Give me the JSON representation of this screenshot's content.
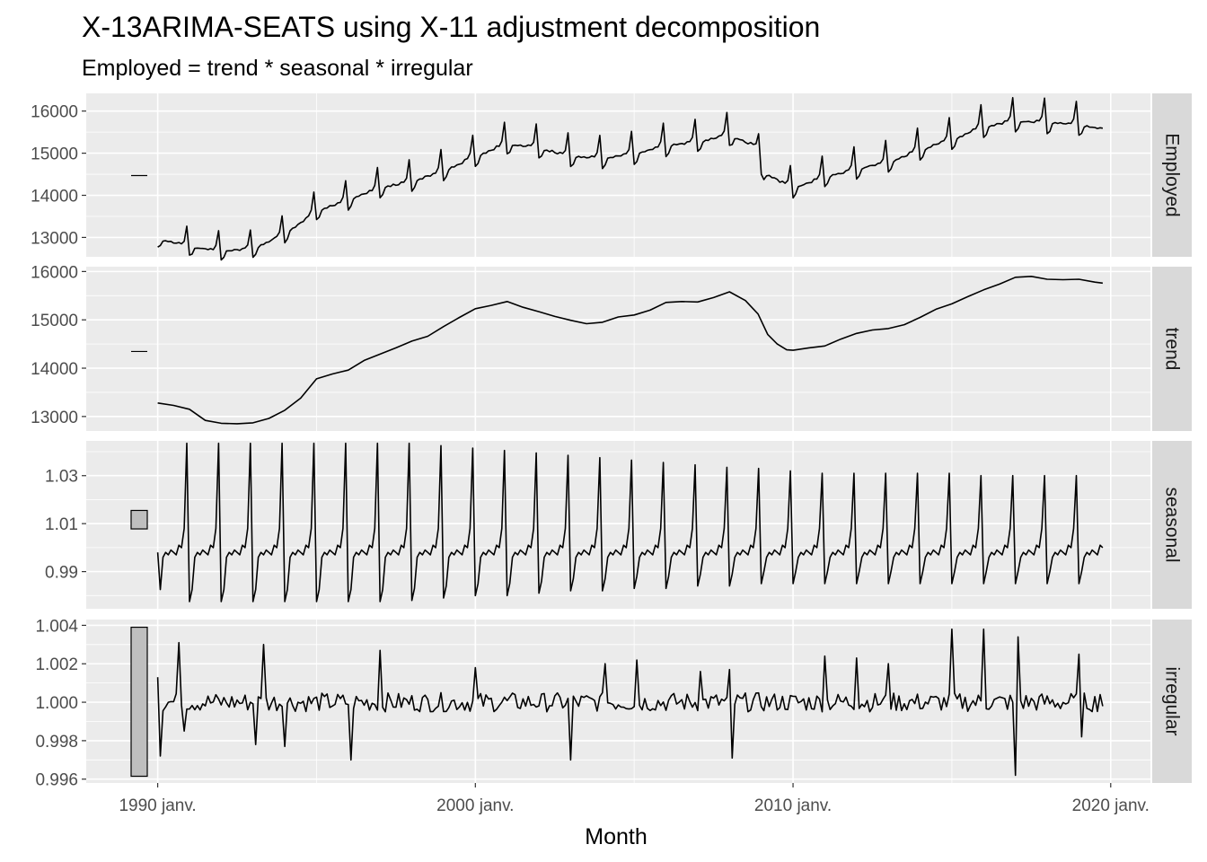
{
  "chart_data": {
    "type": "line",
    "title": "X-13ARIMA-SEATS using X-11 adjustment decomposition",
    "subtitle": "Employed = trend * seasonal * irregular",
    "xlabel": "Month",
    "x_ticks": [
      "1990 janv.",
      "2000 janv.",
      "2010 janv.",
      "2020 janv."
    ],
    "x_range": [
      1987.75,
      2021.25
    ],
    "grid": true,
    "series": [
      {
        "name": "Employed",
        "ylim": [
          12540,
          16420
        ],
        "y_ticks": [
          "13000",
          "14000",
          "15000",
          "16000"
        ],
        "scale_bar": [
          14470,
          14470
        ],
        "trend_points": [
          [
            1990.0,
            13000
          ],
          [
            1991.0,
            12800
          ],
          [
            1992.0,
            12700
          ],
          [
            1993.0,
            12750
          ],
          [
            1994.0,
            13100
          ],
          [
            1995.0,
            13650
          ],
          [
            1996.0,
            13900
          ],
          [
            1997.0,
            14200
          ],
          [
            1998.0,
            14350
          ],
          [
            1999.0,
            14600
          ],
          [
            2000.0,
            14950
          ],
          [
            2001.0,
            15250
          ],
          [
            2002.0,
            15150
          ],
          [
            2003.0,
            14950
          ],
          [
            2004.0,
            14900
          ],
          [
            2005.0,
            15000
          ],
          [
            2006.0,
            15200
          ],
          [
            2007.0,
            15300
          ],
          [
            2008.0,
            15450
          ],
          [
            2008.8,
            15200
          ],
          [
            2009.1,
            14550
          ],
          [
            2009.6,
            14350
          ],
          [
            2010.0,
            14200
          ],
          [
            2011.0,
            14450
          ],
          [
            2012.0,
            14650
          ],
          [
            2013.0,
            14800
          ],
          [
            2014.0,
            15100
          ],
          [
            2015.0,
            15350
          ],
          [
            2016.0,
            15650
          ],
          [
            2017.0,
            15800
          ],
          [
            2018.0,
            15750
          ],
          [
            2019.0,
            15700
          ],
          [
            2019.7,
            15600
          ]
        ]
      },
      {
        "name": "trend",
        "ylim": [
          12700,
          16100
        ],
        "y_ticks": [
          "13000",
          "14000",
          "15000",
          "16000"
        ],
        "scale_bar": [
          14340,
          14345
        ],
        "points": [
          [
            1990.0,
            13280
          ],
          [
            1990.5,
            13230
          ],
          [
            1991.0,
            13150
          ],
          [
            1991.5,
            12920
          ],
          [
            1992.0,
            12860
          ],
          [
            1992.5,
            12850
          ],
          [
            1993.0,
            12870
          ],
          [
            1993.5,
            12960
          ],
          [
            1994.0,
            13130
          ],
          [
            1994.5,
            13380
          ],
          [
            1995.0,
            13780
          ],
          [
            1995.5,
            13880
          ],
          [
            1996.0,
            13960
          ],
          [
            1996.5,
            14160
          ],
          [
            1997.0,
            14290
          ],
          [
            1997.5,
            14420
          ],
          [
            1998.0,
            14560
          ],
          [
            1998.5,
            14660
          ],
          [
            1999.0,
            14860
          ],
          [
            1999.5,
            15050
          ],
          [
            2000.0,
            15230
          ],
          [
            2000.5,
            15300
          ],
          [
            2001.0,
            15380
          ],
          [
            2001.5,
            15260
          ],
          [
            2002.0,
            15170
          ],
          [
            2002.5,
            15070
          ],
          [
            2003.0,
            14990
          ],
          [
            2003.5,
            14920
          ],
          [
            2004.0,
            14950
          ],
          [
            2004.5,
            15060
          ],
          [
            2005.0,
            15100
          ],
          [
            2005.5,
            15200
          ],
          [
            2006.0,
            15360
          ],
          [
            2006.5,
            15380
          ],
          [
            2007.0,
            15370
          ],
          [
            2007.5,
            15460
          ],
          [
            2008.0,
            15580
          ],
          [
            2008.5,
            15400
          ],
          [
            2008.9,
            15120
          ],
          [
            2009.2,
            14700
          ],
          [
            2009.5,
            14500
          ],
          [
            2009.8,
            14380
          ],
          [
            2010.0,
            14370
          ],
          [
            2010.5,
            14420
          ],
          [
            2011.0,
            14460
          ],
          [
            2011.5,
            14600
          ],
          [
            2012.0,
            14720
          ],
          [
            2012.5,
            14790
          ],
          [
            2013.0,
            14820
          ],
          [
            2013.5,
            14900
          ],
          [
            2014.0,
            15050
          ],
          [
            2014.5,
            15220
          ],
          [
            2015.0,
            15330
          ],
          [
            2015.5,
            15480
          ],
          [
            2016.0,
            15620
          ],
          [
            2016.5,
            15740
          ],
          [
            2017.0,
            15880
          ],
          [
            2017.5,
            15900
          ],
          [
            2018.0,
            15840
          ],
          [
            2018.5,
            15830
          ],
          [
            2019.0,
            15840
          ],
          [
            2019.5,
            15780
          ],
          [
            2019.75,
            15760
          ]
        ]
      },
      {
        "name": "seasonal",
        "ylim": [
          0.9745,
          1.0445
        ],
        "y_ticks": [
          "0.99",
          "1.01",
          "1.03"
        ],
        "scale_bar": [
          1.0078,
          1.0155
        ],
        "pattern": [
          0.978,
          0.983,
          0.996,
          0.998,
          0.997,
          0.999,
          0.998,
          0.997,
          1.001,
          1.0,
          1.008,
          1.043
        ],
        "peak_values": [
          1.0435,
          1.0435,
          1.0435,
          1.0435,
          1.0435,
          1.0435,
          1.0435,
          1.0435,
          1.0425,
          1.0415,
          1.0405,
          1.0395,
          1.0385,
          1.0375,
          1.0365,
          1.0355,
          1.0345,
          1.0335,
          1.033,
          1.032,
          1.031,
          1.031,
          1.031,
          1.031,
          1.031,
          1.03,
          1.03,
          1.03,
          1.03,
          1.0315
        ],
        "trough_values": [
          0.9775,
          0.9775,
          0.9775,
          0.9775,
          0.9775,
          0.9775,
          0.9775,
          0.9775,
          0.978,
          0.979,
          0.98,
          0.98,
          0.981,
          0.982,
          0.982,
          0.983,
          0.983,
          0.984,
          0.984,
          0.985,
          0.985,
          0.985,
          0.985,
          0.985,
          0.985,
          0.985,
          0.985,
          0.985,
          0.985,
          0.985
        ]
      },
      {
        "name": "irregular",
        "ylim": [
          0.9958,
          1.0043
        ],
        "y_ticks": [
          "0.996",
          "0.998",
          "1.000",
          "1.002",
          "1.004"
        ],
        "scale_bar": [
          0.99615,
          1.0039
        ],
        "spikes": [
          [
            1990.0,
            1.0013
          ],
          [
            1990.1,
            0.9972
          ],
          [
            1990.65,
            1.0031
          ],
          [
            1990.8,
            0.9985
          ],
          [
            1993.1,
            0.9978
          ],
          [
            1993.35,
            1.003
          ],
          [
            1994.0,
            0.9977
          ],
          [
            1996.05,
            0.997
          ],
          [
            1997.0,
            1.0027
          ],
          [
            2000.0,
            1.0018
          ],
          [
            2003.0,
            0.997
          ],
          [
            2004.1,
            1.002
          ],
          [
            2005.1,
            1.0022
          ],
          [
            2007.1,
            1.0016
          ],
          [
            2008.0,
            1.0017
          ],
          [
            2008.1,
            0.9971
          ],
          [
            2011.0,
            1.0024
          ],
          [
            2012.0,
            1.0023
          ],
          [
            2013.0,
            1.002
          ],
          [
            2015.0,
            1.0038
          ],
          [
            2016.0,
            1.0038
          ],
          [
            2017.0,
            0.9962
          ],
          [
            2017.1,
            1.0034
          ],
          [
            2019.0,
            1.0025
          ],
          [
            2019.1,
            0.9982
          ],
          [
            2019.7,
            1.0004
          ]
        ],
        "noise_amplitude": 0.0005
      }
    ]
  }
}
